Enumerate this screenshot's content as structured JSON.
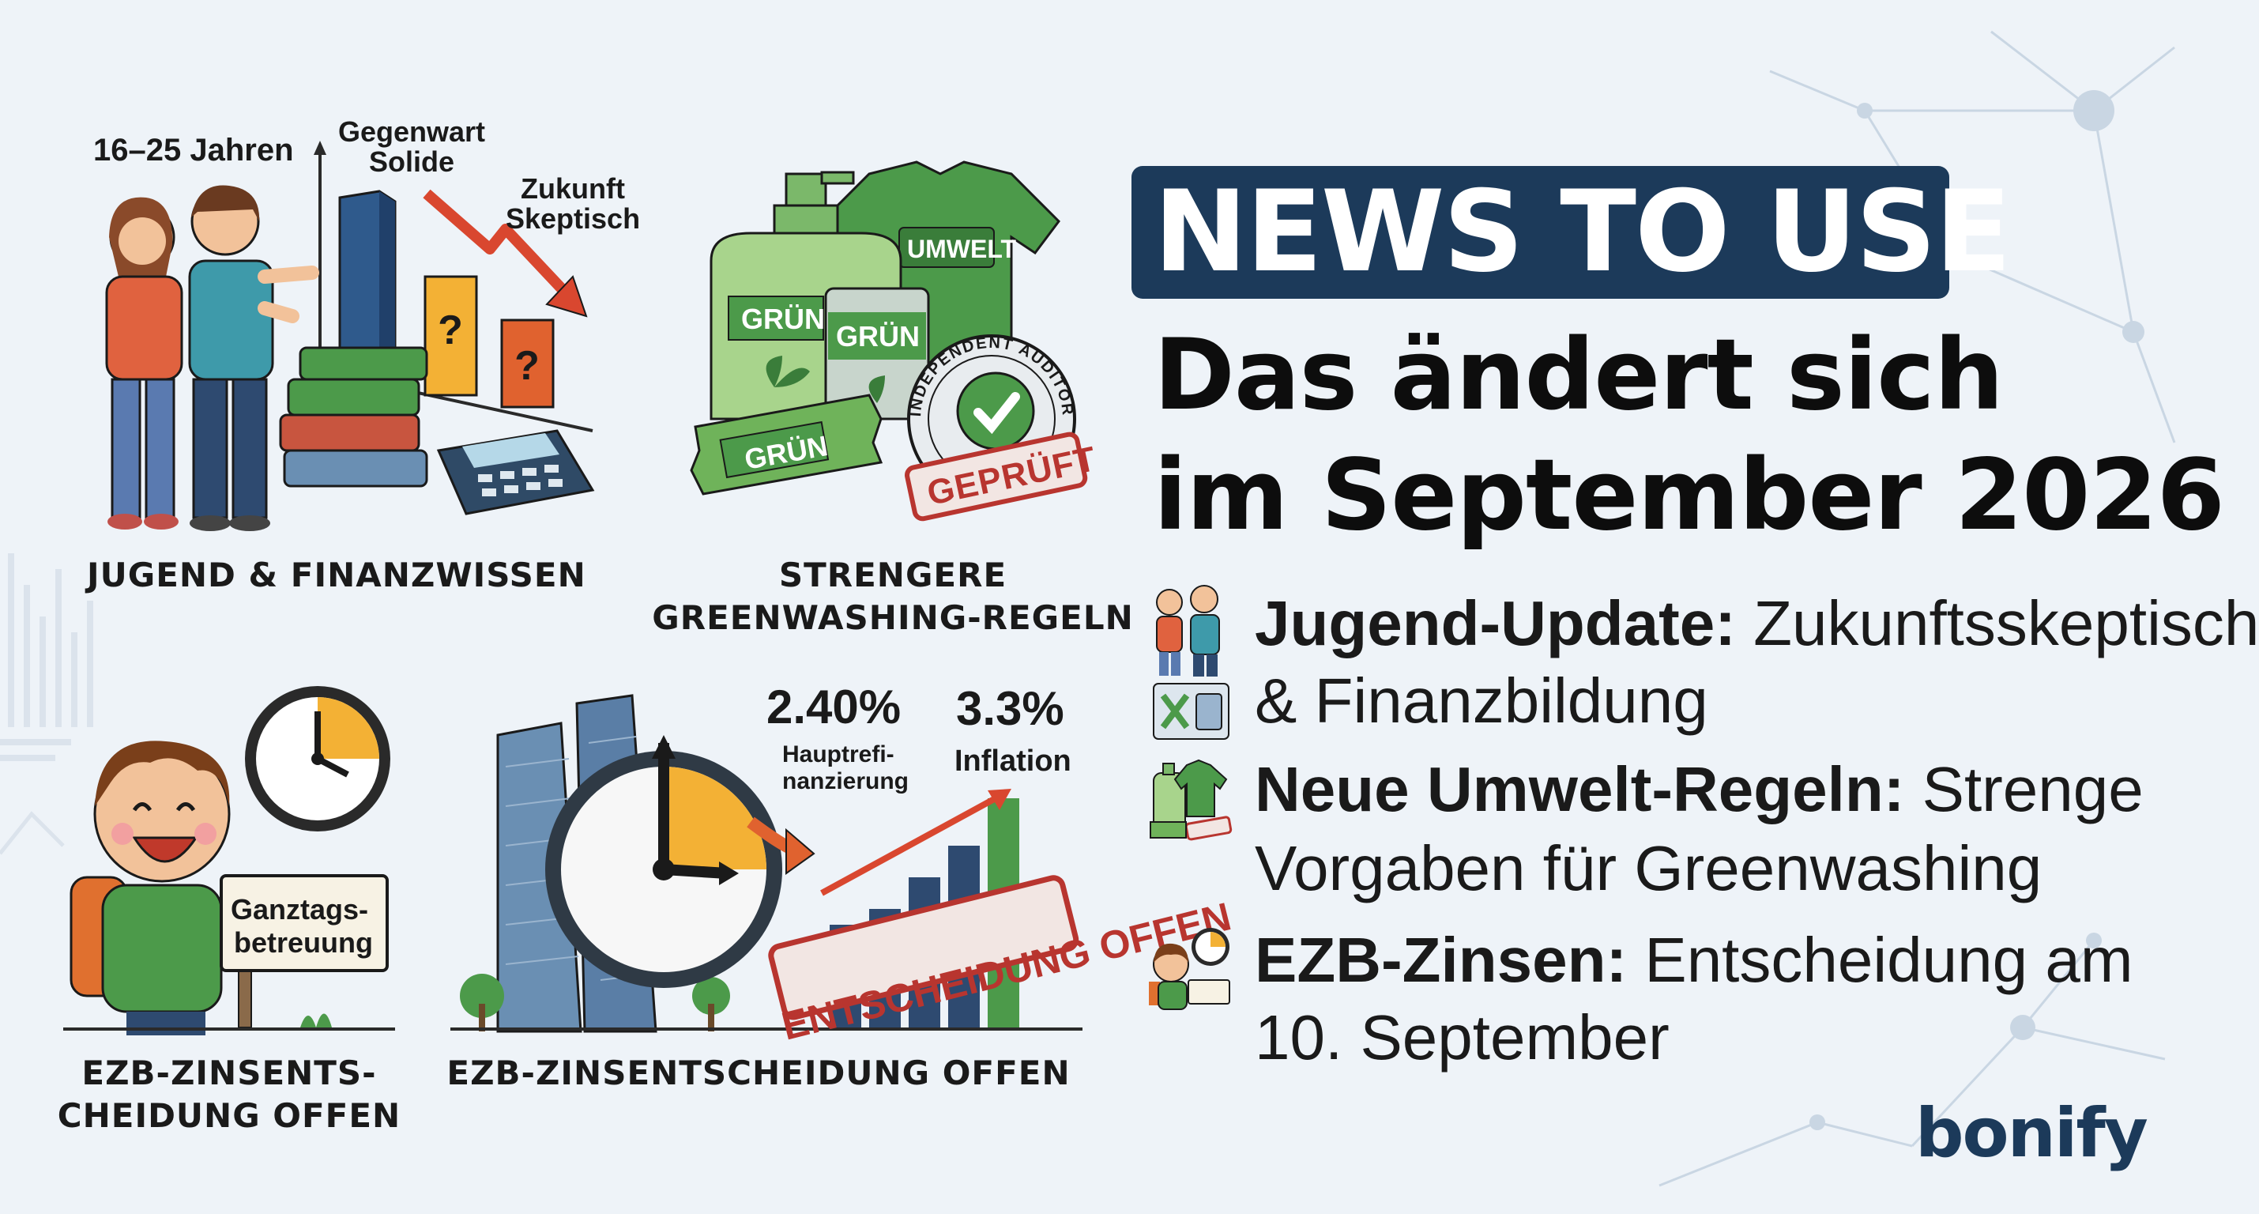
{
  "panels": {
    "youth": {
      "caption": "JUGEND & FINANZWISSEN",
      "age_label": "16–25 Jahren",
      "present_label": "Gegenwart\nSolide",
      "future_label": "Zukunft\nSkeptisch"
    },
    "green": {
      "caption_line1": "STRENGERE",
      "caption_line2": "GREENWASHING-REGELN",
      "shirt_label": "UMWELT",
      "bottle_label": "GRÜN",
      "can_label": "GRÜN",
      "bar_label": "GRÜN",
      "seal_text": "INDEPENDENT AUDITOR",
      "stamp_label": "GEPRÜFT"
    },
    "school": {
      "caption_line1": "EZB-ZINSENTS-",
      "caption_line2": "CHEIDUNG OFFEN",
      "sign_line1": "Ganztags-",
      "sign_line2": "betreuung"
    },
    "ecb": {
      "caption": "EZB-ZINSENTSCHEIDUNG OFFEN",
      "rate_value": "2.40%",
      "rate_label_line1": "Hauptrefi-",
      "rate_label_line2": "nanzierung",
      "inflation_value": "3.3%",
      "inflation_label": "Inflation",
      "stamp_label": "ENTSCHEIDUNG OFFEN"
    }
  },
  "header": {
    "badge": "NEWS TO USE",
    "headline_line1": "Das ändert sich",
    "headline_line2": "im September 2026"
  },
  "bullets": [
    {
      "bold": "Jugend-Update:",
      "text1": "Zukunftsskeptisch",
      "text2": "& Finanzbildung",
      "icon": "youth-icon"
    },
    {
      "bold": "Neue Umwelt-Regeln:",
      "text1": "Strenge",
      "text2": "Vorgaben für Greenwashing",
      "icon": "green-products-icon"
    },
    {
      "bold": "EZB-Zinsen:",
      "text1": "Entscheidung am",
      "text2": "10. September",
      "icon": "school-child-icon"
    }
  ],
  "brand": {
    "logo": "bonify"
  },
  "colors": {
    "badge_bg": "#1c3a5a",
    "green": "#4c9a4a",
    "red_stamp": "#b8352f",
    "orange": "#e0702f"
  }
}
